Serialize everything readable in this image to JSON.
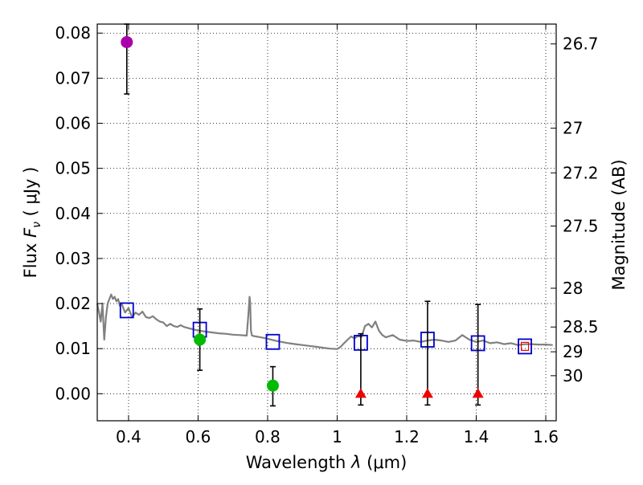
{
  "chart_data": {
    "type": "scatter",
    "xlabel_prefix": "Wavelength  ",
    "xlabel_symbol": "λ",
    "xlabel_unit": " (μm)",
    "ylabel_prefix": "Flux  ",
    "ylabel_symbol": "F",
    "ylabel_sub": "ν",
    "ylabel_unit": "  ( μJy )",
    "y2label": "Magnitude (AB)",
    "xlim": [
      0.31,
      1.63
    ],
    "ylim": [
      -0.006,
      0.082
    ],
    "xticks": [
      0.4,
      0.6,
      0.8,
      1.0,
      1.2,
      1.4,
      1.6
    ],
    "xtick_labels": [
      "0.4",
      "0.6",
      "0.8",
      "1",
      "1.2",
      "1.4",
      "1.6"
    ],
    "yticks": [
      0.0,
      0.01,
      0.02,
      0.03,
      0.04,
      0.05,
      0.06,
      0.07,
      0.08
    ],
    "ytick_labels": [
      "0.00",
      "0.01",
      "0.02",
      "0.03",
      "0.04",
      "0.05",
      "0.06",
      "0.07",
      "0.08"
    ],
    "y2ticks": [
      {
        "label": "26.7",
        "flux": 0.0776
      },
      {
        "label": "27",
        "flux": 0.0589
      },
      {
        "label": "27.2",
        "flux": 0.049
      },
      {
        "label": "27.5",
        "flux": 0.0372
      },
      {
        "label": "28",
        "flux": 0.0234
      },
      {
        "label": "28.5",
        "flux": 0.0148
      },
      {
        "label": "29",
        "flux": 0.0093
      },
      {
        "label": "30",
        "flux": 0.004
      }
    ],
    "grid": true,
    "series": [
      {
        "name": "model spectrum",
        "kind": "line",
        "color": "#808080",
        "x": [
          0.31,
          0.315,
          0.32,
          0.325,
          0.33,
          0.335,
          0.34,
          0.345,
          0.35,
          0.355,
          0.36,
          0.365,
          0.37,
          0.375,
          0.38,
          0.39,
          0.4,
          0.41,
          0.42,
          0.43,
          0.44,
          0.45,
          0.46,
          0.47,
          0.48,
          0.49,
          0.5,
          0.51,
          0.52,
          0.53,
          0.54,
          0.55,
          0.56,
          0.57,
          0.58,
          0.59,
          0.6,
          0.62,
          0.64,
          0.66,
          0.68,
          0.7,
          0.72,
          0.74,
          0.745,
          0.748,
          0.75,
          0.752,
          0.755,
          0.76,
          0.78,
          0.8,
          0.82,
          0.84,
          0.86,
          0.88,
          0.9,
          0.92,
          0.94,
          0.96,
          0.98,
          1.0,
          1.01,
          1.02,
          1.03,
          1.04,
          1.05,
          1.06,
          1.07,
          1.08,
          1.09,
          1.1,
          1.11,
          1.12,
          1.13,
          1.14,
          1.16,
          1.18,
          1.2,
          1.22,
          1.24,
          1.26,
          1.28,
          1.3,
          1.32,
          1.34,
          1.36,
          1.38,
          1.4,
          1.42,
          1.44,
          1.46,
          1.48,
          1.5,
          1.52,
          1.54,
          1.56,
          1.58,
          1.6,
          1.62
        ],
        "y": [
          0.02,
          0.018,
          0.016,
          0.02,
          0.012,
          0.017,
          0.02,
          0.021,
          0.022,
          0.021,
          0.0215,
          0.0205,
          0.021,
          0.0195,
          0.02,
          0.018,
          0.019,
          0.017,
          0.018,
          0.0175,
          0.0182,
          0.017,
          0.0168,
          0.0172,
          0.0165,
          0.016,
          0.0158,
          0.015,
          0.0155,
          0.015,
          0.0148,
          0.0152,
          0.0148,
          0.0146,
          0.0144,
          0.0142,
          0.014,
          0.0138,
          0.0136,
          0.0134,
          0.0133,
          0.0131,
          0.013,
          0.0129,
          0.018,
          0.0215,
          0.02,
          0.014,
          0.0129,
          0.0128,
          0.0125,
          0.0122,
          0.0118,
          0.0115,
          0.0112,
          0.011,
          0.0108,
          0.0106,
          0.0104,
          0.0102,
          0.01,
          0.0099,
          0.0104,
          0.0112,
          0.012,
          0.0127,
          0.0123,
          0.0128,
          0.0126,
          0.015,
          0.0155,
          0.0147,
          0.016,
          0.014,
          0.013,
          0.0125,
          0.013,
          0.012,
          0.0117,
          0.0118,
          0.0115,
          0.0118,
          0.012,
          0.0118,
          0.0115,
          0.0118,
          0.013,
          0.012,
          0.0115,
          0.0118,
          0.0112,
          0.0114,
          0.011,
          0.0112,
          0.0108,
          0.011,
          0.011,
          0.0109,
          0.0109,
          0.0108
        ]
      },
      {
        "name": "model photometry",
        "kind": "open-square",
        "color": "#0000cc",
        "x": [
          0.395,
          0.605,
          0.815,
          1.068,
          1.26,
          1.405,
          1.54
        ],
        "y": [
          0.0185,
          0.0142,
          0.0115,
          0.0113,
          0.012,
          0.0112,
          0.0105
        ]
      },
      {
        "name": "detections (purple)",
        "kind": "circle",
        "color": "#aa00aa",
        "x": [
          0.395
        ],
        "y": [
          0.078
        ],
        "err_low": [
          0.0665
        ],
        "err_high": [
          0.082
        ]
      },
      {
        "name": "detections (green)",
        "kind": "circle",
        "color": "#00bb00",
        "x": [
          0.605,
          0.815
        ],
        "y": [
          0.012,
          0.0018
        ],
        "err_low": [
          0.0052,
          -0.0027
        ],
        "err_high": [
          0.0188,
          0.006
        ]
      },
      {
        "name": "upper limits",
        "kind": "triangle",
        "color": "#ee0000",
        "x": [
          1.068,
          1.26,
          1.405
        ],
        "y": [
          0.0,
          0.0,
          0.0
        ],
        "err_low": [
          -0.0025,
          -0.0025,
          -0.0025
        ],
        "err_high": [
          0.0133,
          0.0205,
          0.0198
        ]
      },
      {
        "name": "highlight",
        "kind": "small-square",
        "color": "#ee0000",
        "x": [
          1.54
        ],
        "y": [
          0.0105
        ]
      }
    ]
  }
}
